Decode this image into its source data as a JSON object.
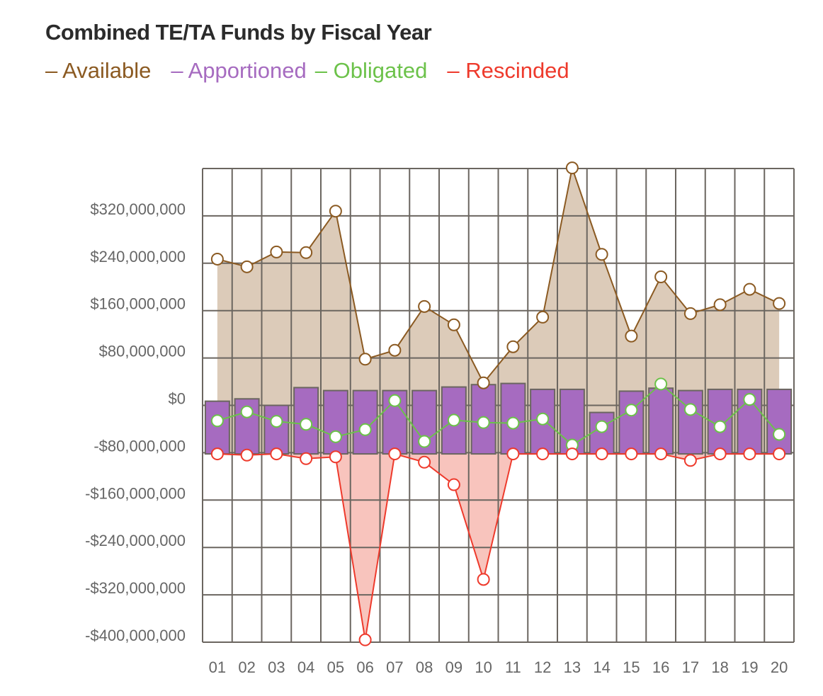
{
  "chart_data": {
    "type": "bar+line",
    "title": "Combined TE/TA Funds by Fiscal Year",
    "xlabel": "",
    "ylabel": "",
    "categories": [
      "01",
      "02",
      "03",
      "04",
      "05",
      "06",
      "07",
      "08",
      "09",
      "10",
      "11",
      "12",
      "13",
      "14",
      "15",
      "16",
      "17",
      "18",
      "19",
      "20"
    ],
    "ylim": [
      -400000000,
      400000000
    ],
    "yticks": [
      -400000000,
      -320000000,
      -240000000,
      -160000000,
      -80000000,
      0,
      80000000,
      160000000,
      240000000,
      320000000
    ],
    "ytick_labels": [
      "-$400,000,000",
      "-$320,000,000",
      "-$240,000,000",
      "-$160,000,000",
      "-$80,000,000",
      "$0",
      "$80,000,000",
      "$160,000,000",
      "$240,000,000",
      "$320,000,000"
    ],
    "grid": true,
    "legend_position": "top-left",
    "bar_base": -82000000,
    "series": [
      {
        "name": "Available",
        "type": "area-line",
        "color": "#8b5a22",
        "fill": "#dccbb9",
        "values": [
          247,
          234,
          259,
          258,
          328,
          78,
          93,
          167,
          136,
          38,
          99,
          149,
          401,
          255,
          117,
          217,
          155,
          170,
          196,
          172
        ]
      },
      {
        "name": "Apportioned",
        "type": "bar",
        "color": "#a66bc0",
        "values": [
          7,
          11,
          0,
          30,
          25,
          25,
          25,
          25,
          31,
          35,
          37,
          27,
          27,
          -12,
          24,
          29,
          25,
          27,
          27,
          27
        ]
      },
      {
        "name": "Obligated",
        "type": "line",
        "color": "#6cc24a",
        "values": [
          -26,
          -11,
          -27,
          -32,
          -53,
          -41,
          8,
          -61,
          -25,
          -29,
          -30,
          -23,
          -67,
          -36,
          -8,
          36,
          -7,
          -36,
          10,
          -49
        ]
      },
      {
        "name": "Rescinded",
        "type": "area-line",
        "color": "#ee3a2c",
        "fill": "#f8c4bd",
        "values": [
          -82,
          -84,
          -82,
          -90,
          -87,
          -396,
          -82,
          -96,
          -134,
          -294,
          -82,
          -82,
          -82,
          -82,
          -82,
          -82,
          -93,
          -82,
          -82,
          -82
        ]
      }
    ],
    "value_unit_multiplier": 1000000
  }
}
